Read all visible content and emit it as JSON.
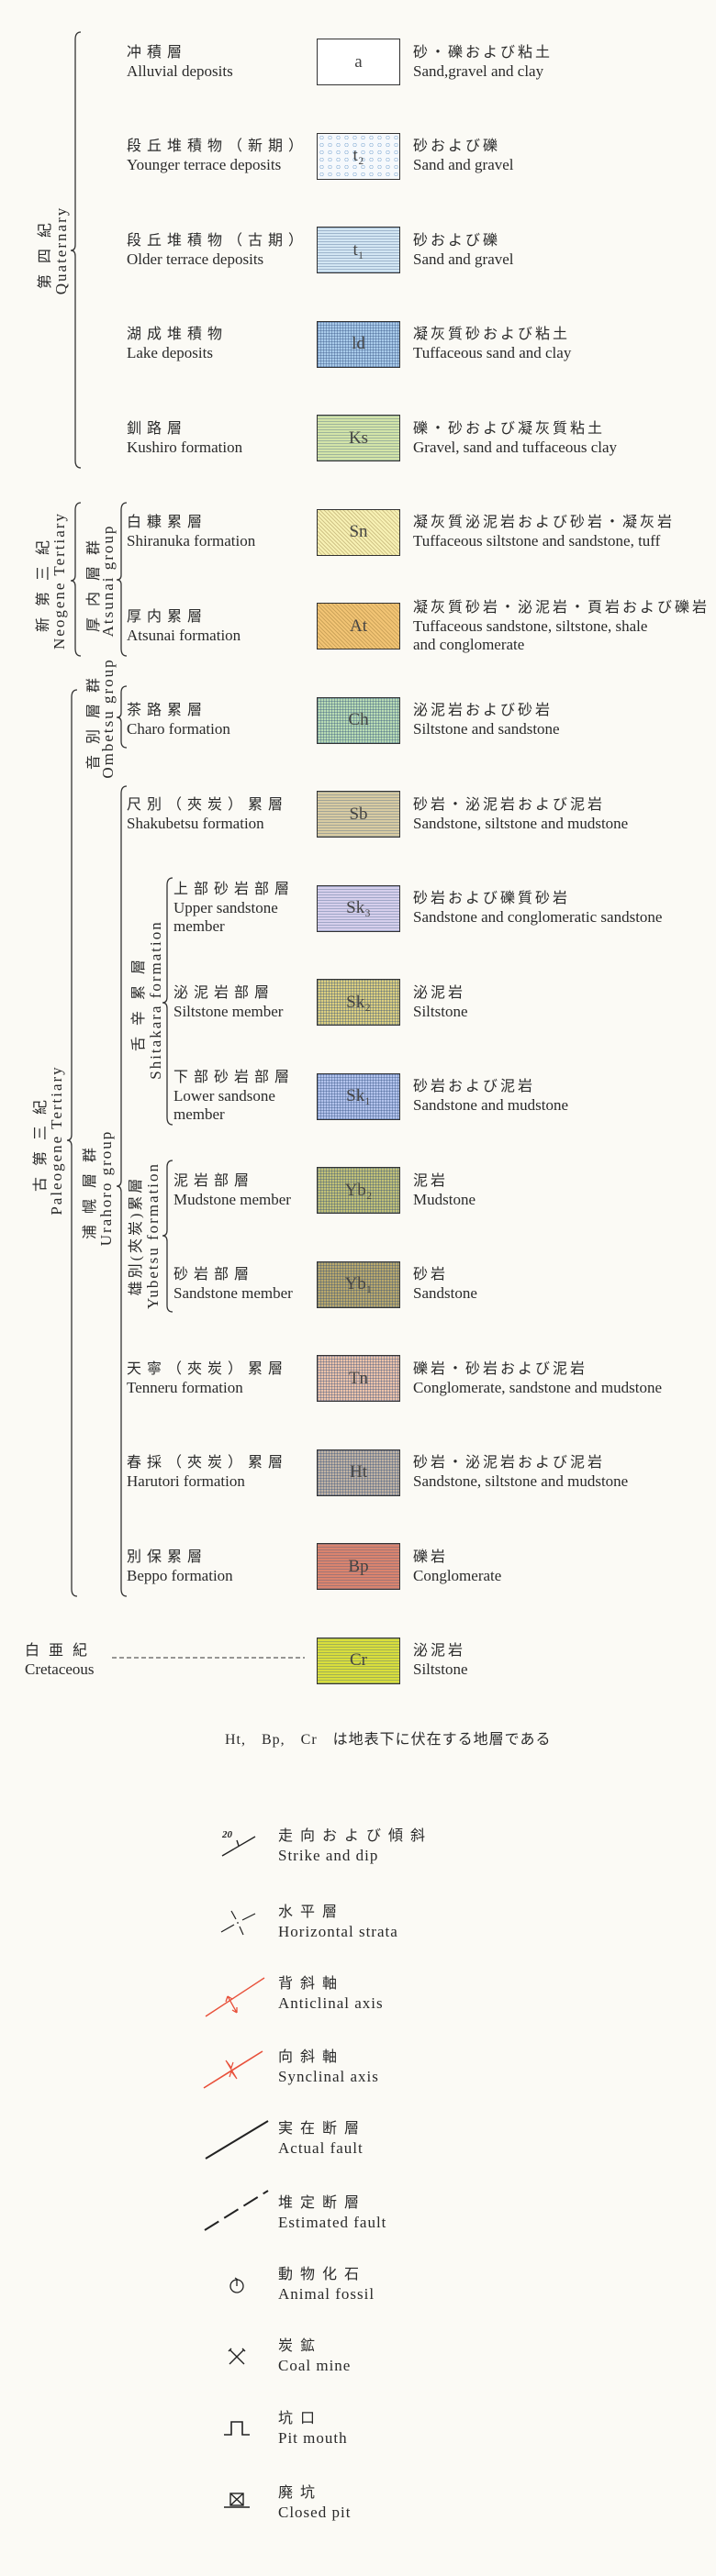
{
  "periods": {
    "quaternary": {
      "jp": "第四紀",
      "en": "Quaternary"
    },
    "neogene": {
      "jp": "新第三紀",
      "en": "Neogene Tertiary"
    },
    "paleogene": {
      "jp": "古第三紀",
      "en": "Paleogene Tertiary"
    },
    "cretaceous": {
      "jp": "白亜紀",
      "en": "Cretaceous"
    }
  },
  "groups": {
    "atsunai": {
      "jp": "厚内層群",
      "en": "Atsunai group"
    },
    "ombetsu": {
      "jp": "音別層群",
      "en": "Ombetsu group"
    },
    "urahoro": {
      "jp": "浦幌層群",
      "en": "Urahoro group"
    },
    "shitakara": {
      "jp": "舌辛累層",
      "en": "Shitakara formation"
    },
    "yubetsu": {
      "jp": "雄別(夾炭)累層",
      "en": "Yubetsu formation"
    }
  },
  "rows": [
    {
      "kind": "formation",
      "name_jp": "冲積層",
      "name_en": [
        "Alluvial deposits"
      ],
      "symbol": "a",
      "color": "#ffffff",
      "pattern": "none",
      "desc_jp": "砂・礫および粘土",
      "desc_en": [
        "Sand,gravel and clay"
      ]
    },
    {
      "kind": "formation",
      "name_jp": "段丘堆積物（新期）",
      "name_en": [
        "Younger terrace deposits"
      ],
      "symbol": "t₂",
      "color": "#f6f9fc",
      "pattern": "dots",
      "desc_jp": "砂および礫",
      "desc_en": [
        "Sand and gravel"
      ]
    },
    {
      "kind": "formation",
      "name_jp": "段丘堆積物（古期）",
      "name_en": [
        "Older terrace deposits"
      ],
      "symbol": "t₁",
      "color": "#d3e6f3",
      "pattern": "hlines",
      "desc_jp": "砂および礫",
      "desc_en": [
        "Sand and gravel"
      ]
    },
    {
      "kind": "formation",
      "name_jp": "湖成堆積物",
      "name_en": [
        "Lake deposits"
      ],
      "symbol": "ld",
      "color": "#a9cbea",
      "pattern": "grid",
      "desc_jp": "凝灰質砂および粘土",
      "desc_en": [
        "Tuffaceous sand and clay"
      ]
    },
    {
      "kind": "formation",
      "name_jp": "釧路層",
      "name_en": [
        "Kushiro formation"
      ],
      "symbol": "Ks",
      "color": "#d3e4a8",
      "pattern": "hlines",
      "desc_jp": "礫・砂および凝灰質粘土",
      "desc_en": [
        "Gravel, sand and tuffaceous clay"
      ]
    },
    {
      "kind": "formation",
      "name_jp": "白糠累層",
      "name_en": [
        "Shiranuka formation"
      ],
      "symbol": "Sn",
      "color": "#f7f1b4",
      "pattern": "diag",
      "desc_jp": "凝灰質泌泥岩および砂岩・凝灰岩",
      "desc_en": [
        "Tuffaceous siltstone and sandstone, tuff"
      ]
    },
    {
      "kind": "formation",
      "name_jp": "厚内累層",
      "name_en": [
        "Atsunai formation"
      ],
      "symbol": "At",
      "color": "#f2c474",
      "pattern": "diag",
      "desc_jp": "凝灰質砂岩・泌泥岩・頁岩および礫岩",
      "desc_en": [
        "Tuffaceous sandstone, siltstone, shale",
        "and conglomerate"
      ]
    },
    {
      "kind": "formation",
      "name_jp": "茶路累層",
      "name_en": [
        "Charo formation"
      ],
      "symbol": "Ch",
      "color": "#b9dcb4",
      "pattern": "grid",
      "desc_jp": "泌泥岩および砂岩",
      "desc_en": [
        "Siltstone and sandstone"
      ]
    },
    {
      "kind": "formation",
      "name_jp": "尺別（夾炭）累層",
      "name_en": [
        "Shakubetsu formation"
      ],
      "symbol": "Sb",
      "color": "#d8cba2",
      "pattern": "hlines",
      "desc_jp": "砂岩・泌泥岩および泥岩",
      "desc_en": [
        "Sandstone, siltstone and mudstone"
      ]
    },
    {
      "kind": "member",
      "name_jp": "上部砂岩部層",
      "name_en": [
        "Upper sandstone",
        "member"
      ],
      "symbol": "Sk₃",
      "color": "#d6cfec",
      "pattern": "hlines",
      "desc_jp": "砂岩および礫質砂岩",
      "desc_en": [
        "Sandstone and conglomeratic sandstone"
      ]
    },
    {
      "kind": "member",
      "name_jp": "泌泥岩部層",
      "name_en": [
        "Siltstone member"
      ],
      "symbol": "Sk₂",
      "color": "#dccf80",
      "pattern": "grid",
      "desc_jp": "泌泥岩",
      "desc_en": [
        "Siltstone"
      ]
    },
    {
      "kind": "member",
      "name_jp": "下部砂岩部層",
      "name_en": [
        "Lower sandsone",
        "member"
      ],
      "symbol": "Sk₁",
      "color": "#b3c3ec",
      "pattern": "grid",
      "desc_jp": "砂岩および泥岩",
      "desc_en": [
        "Sandstone and mudstone"
      ]
    },
    {
      "kind": "member",
      "name_jp": "泥岩部層",
      "name_en": [
        "Mudstone member"
      ],
      "symbol": "Yb₂",
      "color": "#c2c177",
      "pattern": "grid",
      "desc_jp": "泥岩",
      "desc_en": [
        "Mudstone"
      ]
    },
    {
      "kind": "member",
      "name_jp": "砂岩部層",
      "name_en": [
        "Sandstone member"
      ],
      "symbol": "Yb₁",
      "color": "#b9a86c",
      "pattern": "grid",
      "desc_jp": "砂岩",
      "desc_en": [
        "Sandstone"
      ]
    },
    {
      "kind": "formation",
      "name_jp": "天寧（夾炭）累層",
      "name_en": [
        "Tenneru formation"
      ],
      "symbol": "Tn",
      "color": "#ecc3aa",
      "pattern": "grid",
      "desc_jp": "礫岩・砂岩および泥岩",
      "desc_en": [
        "Conglomerate, sandstone and mudstone"
      ]
    },
    {
      "kind": "formation",
      "name_jp": "春採（夾炭）累層",
      "name_en": [
        "Harutori formation"
      ],
      "symbol": "Ht",
      "color": "#c0b3a4",
      "pattern": "grid",
      "desc_jp": "砂岩・泌泥岩および泥岩",
      "desc_en": [
        "Sandstone, siltstone and mudstone"
      ]
    },
    {
      "kind": "formation",
      "name_jp": "別保累層",
      "name_en": [
        "Beppo formation"
      ],
      "symbol": "Bp",
      "color": "#da846e",
      "pattern": "hlines",
      "desc_jp": "礫岩",
      "desc_en": [
        "Conglomerate"
      ]
    },
    {
      "kind": "cretaceous",
      "name_jp": "",
      "name_en": [],
      "symbol": "Cr",
      "color": "#d9de3c",
      "pattern": "hlines",
      "desc_jp": "泌泥岩",
      "desc_en": [
        "Siltstone"
      ]
    }
  ],
  "note": "Ht,　Bp,　Cr　は地表下に伏在する地層である",
  "symbols": [
    {
      "icon": "strike-and-dip-icon",
      "value": "20",
      "jp": "走向および傾斜",
      "en": "Strike and dip"
    },
    {
      "icon": "horizontal-strata-icon",
      "jp": "水平層",
      "en": "Horizontal strata"
    },
    {
      "icon": "anticlinal-axis-icon",
      "jp": "背斜軸",
      "en": "Anticlinal axis"
    },
    {
      "icon": "synclinal-axis-icon",
      "jp": "向斜軸",
      "en": "Synclinal axis"
    },
    {
      "icon": "actual-fault-icon",
      "jp": "実在断層",
      "en": "Actual fault"
    },
    {
      "icon": "estimated-fault-icon",
      "jp": "堆定断層",
      "en": "Estimated fault"
    },
    {
      "icon": "animal-fossil-icon",
      "jp": "動物化石",
      "en": "Animal fossil"
    },
    {
      "icon": "coal-mine-icon",
      "jp": "炭鉱",
      "en": "Coal mine"
    },
    {
      "icon": "pit-mouth-icon",
      "jp": "坑口",
      "en": "Pit mouth"
    },
    {
      "icon": "closed-pit-icon",
      "jp": "廃坑",
      "en": "Closed pit"
    }
  ],
  "colors": {
    "axis_red": "#e8503a",
    "ink": "#2a2a2a",
    "paper": "#fbfaf5"
  }
}
